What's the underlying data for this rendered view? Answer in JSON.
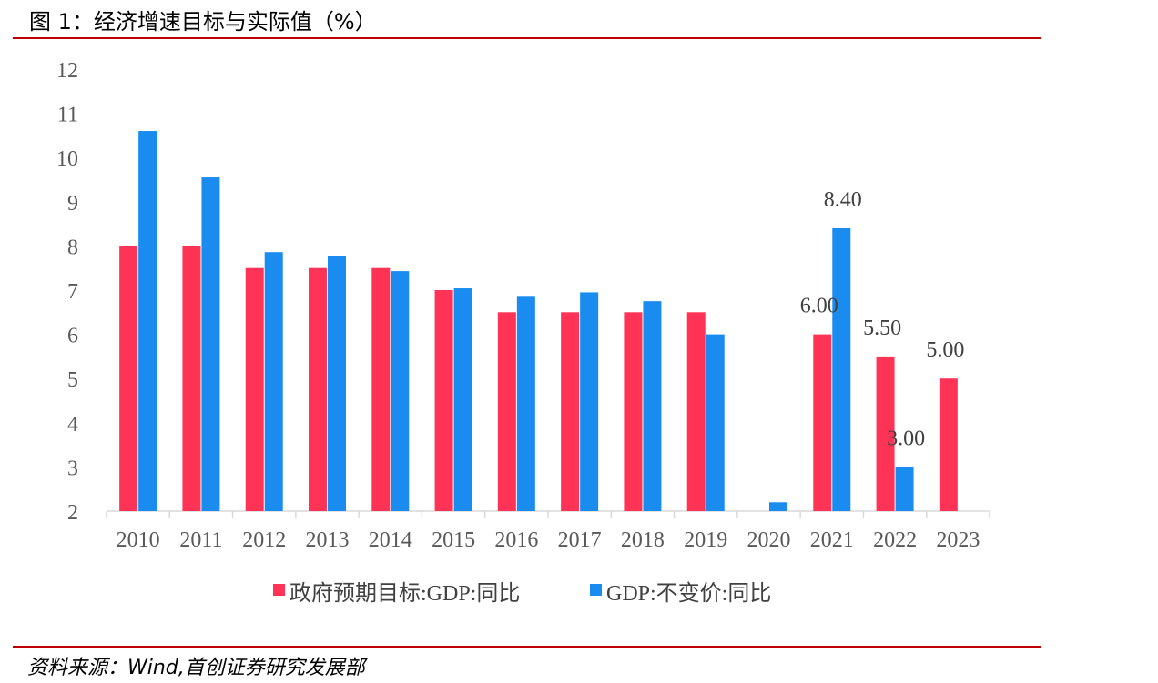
{
  "figure": {
    "title": "图 1：经济增速目标与实际值（%）",
    "source": "资料来源：Wind,首创证券研究发展部"
  },
  "colors": {
    "target": "#ff3355",
    "actual": "#1a8cf0",
    "rule": "#c00000",
    "axis": "#d9d9d9"
  },
  "chart_data": {
    "type": "bar",
    "categories": [
      "2010",
      "2011",
      "2012",
      "2013",
      "2014",
      "2015",
      "2016",
      "2017",
      "2018",
      "2019",
      "2020",
      "2021",
      "2022",
      "2023"
    ],
    "series": [
      {
        "name": "政府预期目标:GDP:同比",
        "values": [
          8.0,
          8.0,
          7.5,
          7.5,
          7.5,
          7.0,
          6.5,
          6.5,
          6.5,
          6.5,
          null,
          6.0,
          5.5,
          5.0
        ]
      },
      {
        "name": "GDP:不变价:同比",
        "values": [
          10.6,
          9.55,
          7.86,
          7.77,
          7.43,
          7.04,
          6.85,
          6.95,
          6.75,
          6.0,
          2.2,
          8.4,
          3.0,
          null
        ]
      }
    ],
    "data_labels": [
      {
        "series": 0,
        "category": "2021",
        "text": "6.00"
      },
      {
        "series": 0,
        "category": "2022",
        "text": "5.50"
      },
      {
        "series": 0,
        "category": "2023",
        "text": "5.00"
      },
      {
        "series": 1,
        "category": "2021",
        "text": "8.40"
      },
      {
        "series": 1,
        "category": "2022",
        "text": "3.00"
      }
    ],
    "yticks": [
      "2",
      "3",
      "4",
      "5",
      "6",
      "7",
      "8",
      "9",
      "10",
      "11",
      "12"
    ],
    "ylim": [
      2,
      12
    ],
    "grid": false,
    "legend_position": "bottom"
  }
}
